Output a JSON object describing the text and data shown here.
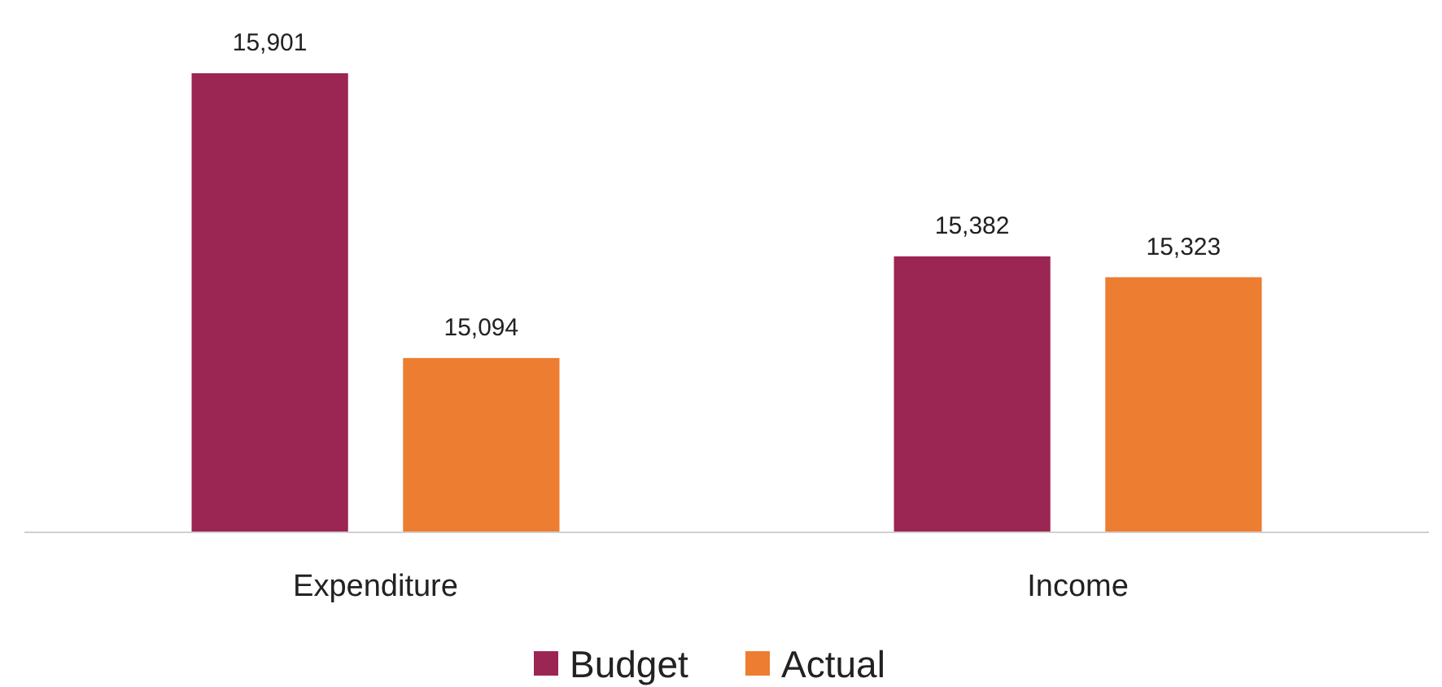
{
  "chart_data": {
    "type": "bar",
    "categories": [
      "Expenditure",
      "Income"
    ],
    "series": [
      {
        "name": "Budget",
        "color": "#9b2553",
        "values": [
          15901,
          15382
        ],
        "value_labels": [
          "15,901",
          "15,382"
        ]
      },
      {
        "name": "Actual",
        "color": "#ed7d31",
        "values": [
          15094,
          15323
        ],
        "value_labels": [
          "15,094",
          "15,323"
        ]
      }
    ],
    "ylim": [
      14600,
      15901
    ],
    "legend": "bottom",
    "tick_labels": "x"
  }
}
